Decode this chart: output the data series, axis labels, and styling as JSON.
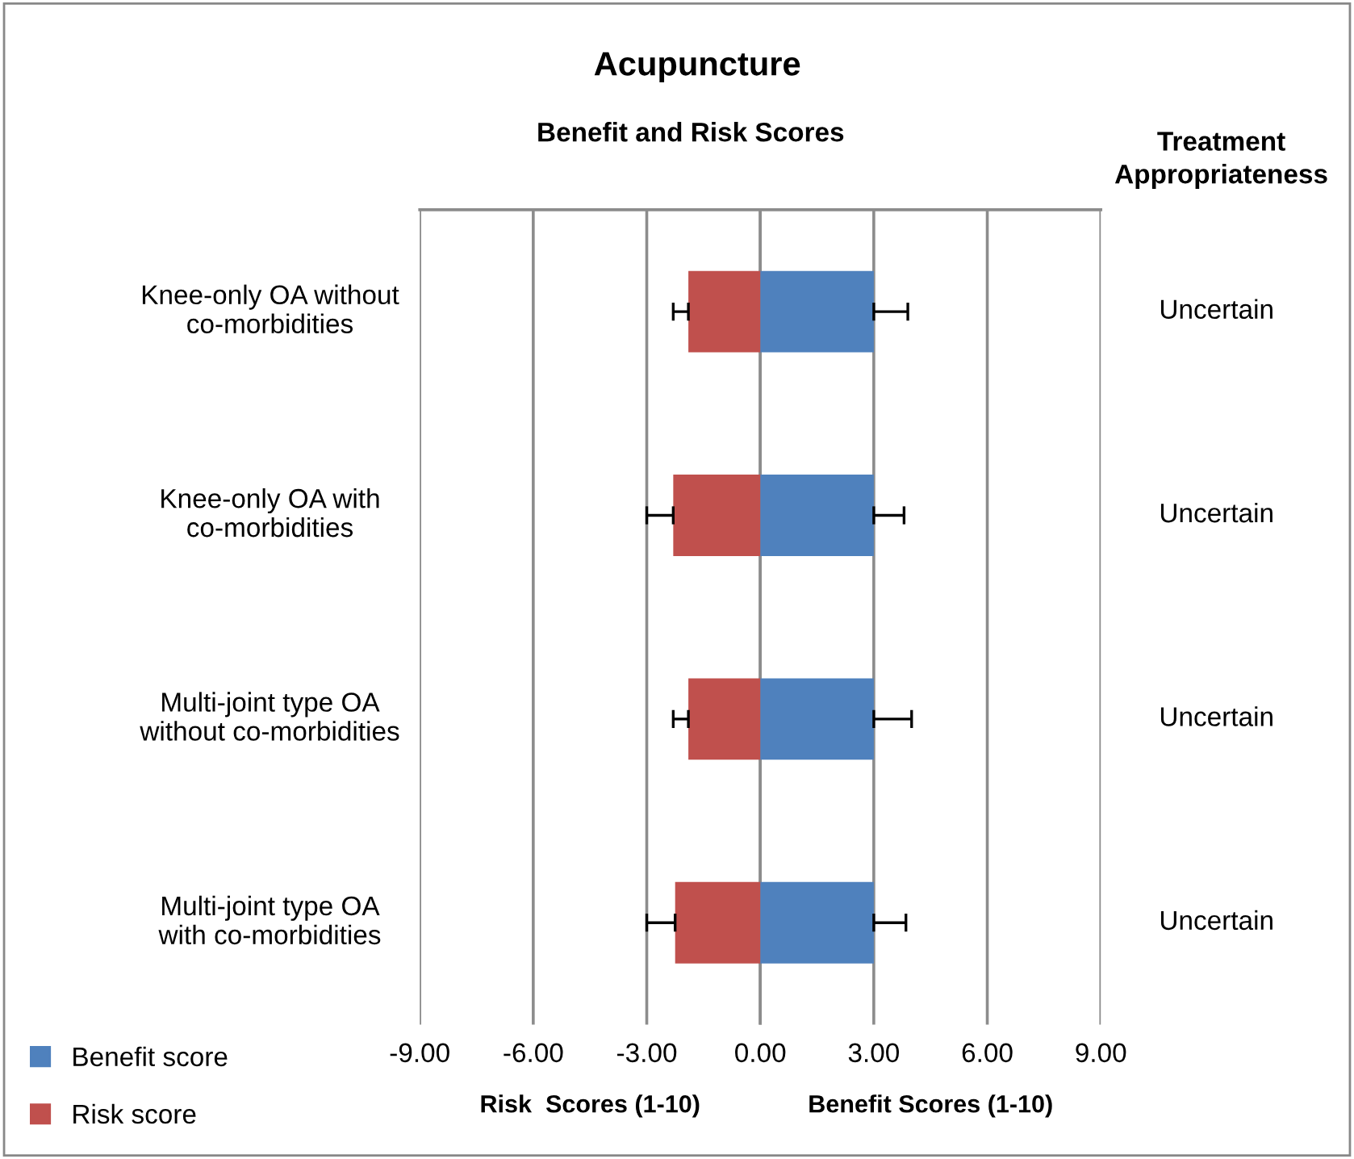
{
  "chart_data": {
    "type": "bar",
    "orientation": "horizontal",
    "stacked": true,
    "title": "Acupuncture",
    "subtitle": "Benefit and Risk Scores",
    "xlabel": "Risk  Scores (1-10)",
    "categories": [
      "Knee-only OA without co-morbidities",
      "Knee-only OA with co-morbidities",
      "Multi-joint type OA without co-morbidities",
      "Multi-joint type OA with co-morbidities"
    ],
    "series": [
      {
        "name": "Benefit score",
        "color": "#4f81bd",
        "values": [
          3.0,
          3.0,
          3.0,
          3.0
        ],
        "errors": [
          0.9,
          0.8,
          1.0,
          0.85
        ]
      },
      {
        "name": "Risk score",
        "color": "#c0504d",
        "values": [
          -1.9,
          -2.3,
          -1.9,
          -2.25
        ],
        "errors": [
          0.4,
          0.7,
          0.4,
          0.75
        ]
      }
    ],
    "xlim": [
      -9,
      9
    ],
    "xticks": [
      {
        "value": -9,
        "label": "-9.00"
      },
      {
        "value": -6,
        "label": "-6.00"
      },
      {
        "value": -3,
        "label": "-3.00"
      },
      {
        "value": 0,
        "label": "0.00"
      },
      {
        "value": 3,
        "label": "3.00"
      },
      {
        "value": 6,
        "label": "6.00"
      },
      {
        "value": 9,
        "label": "9.00"
      }
    ],
    "grid": "x",
    "legend": "bottom left",
    "annotations": [
      "Treatment\nAppropriateness",
      "Uncertain",
      "Uncertain",
      "Uncertain",
      "Uncertain",
      "Benefit Scores (1-10)"
    ]
  }
}
